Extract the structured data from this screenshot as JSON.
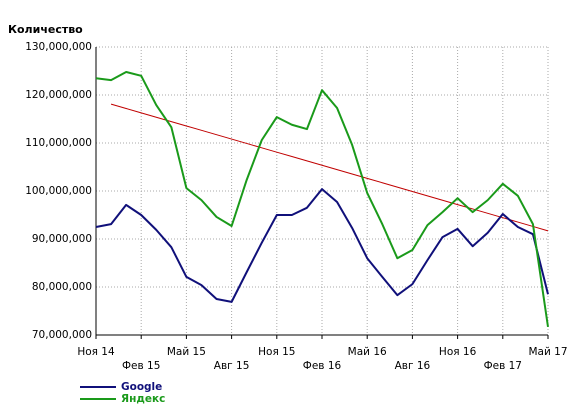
{
  "chart_data": {
    "type": "line",
    "y_label": "Количество",
    "categories": [
      "Ноя 14",
      null,
      null,
      "Фев 15",
      null,
      null,
      "Май 15",
      null,
      null,
      "Авг 15",
      null,
      null,
      "Ноя 15",
      null,
      null,
      "Фев 16",
      null,
      null,
      "Май 16",
      null,
      null,
      "Авг 16",
      null,
      null,
      "Ноя 16",
      null,
      null,
      "Фев 17",
      null,
      null,
      "Май 17"
    ],
    "series": [
      {
        "name": "Google",
        "color": "#10107a",
        "values": [
          92500000,
          93100000,
          97100000,
          95000000,
          91900000,
          88300000,
          82100000,
          80400000,
          77500000,
          76900000,
          83100000,
          89200000,
          95000000,
          95000000,
          96500000,
          100400000,
          97700000,
          92300000,
          86000000,
          82100000,
          78300000,
          80600000,
          85600000,
          90400000,
          92100000,
          88500000,
          91300000,
          95200000,
          92500000,
          91000000,
          78500000
        ]
      },
      {
        "name": "Яндекс",
        "color": "#1a9a1a",
        "values": [
          123500000,
          123100000,
          124800000,
          124000000,
          117900000,
          113300000,
          100600000,
          98100000,
          94600000,
          92700000,
          102300000,
          110600000,
          115400000,
          113800000,
          112900000,
          121000000,
          117300000,
          109600000,
          99600000,
          93100000,
          86000000,
          87700000,
          92900000,
          95600000,
          98500000,
          95600000,
          98100000,
          101500000,
          99000000,
          93100000,
          71700000
        ]
      }
    ],
    "trend": {
      "color": "#c00000",
      "values": [
        null,
        118100000,
        117190000,
        116280000,
        115370000,
        114460000,
        113550000,
        112640000,
        111730000,
        110820000,
        109910000,
        109000000,
        108090000,
        107180000,
        106270000,
        105360000,
        104450000,
        103540000,
        102630000,
        101720000,
        100810000,
        99900000,
        98990000,
        98080000,
        97170000,
        96260000,
        95350000,
        94440000,
        93530000,
        92620000,
        91700000
      ]
    },
    "ylim": [
      70000000,
      130000000
    ],
    "yticks": [
      {
        "value": 70000000,
        "label": "70,000,000"
      },
      {
        "value": 80000000,
        "label": "80,000,000"
      },
      {
        "value": 90000000,
        "label": "90,000,000"
      },
      {
        "value": 100000000,
        "label": "100,000,000"
      },
      {
        "value": 110000000,
        "label": "110,000,000"
      },
      {
        "value": 120000000,
        "label": "120,000,000"
      },
      {
        "value": 130000000,
        "label": "130,000,000"
      }
    ],
    "grid": true,
    "legend": "lower left"
  }
}
